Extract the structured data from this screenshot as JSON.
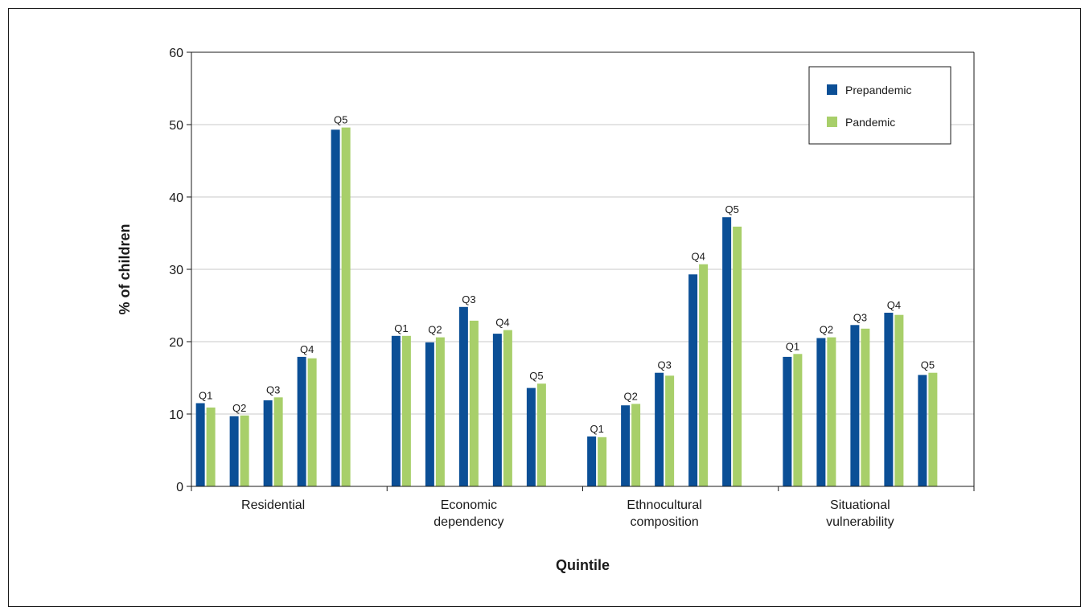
{
  "chart_data": {
    "type": "bar",
    "xlabel": "Quintile",
    "ylabel": "% of children",
    "ylim": [
      0,
      60
    ],
    "yticks": [
      0,
      10,
      20,
      30,
      40,
      50,
      60
    ],
    "grid": true,
    "legend_position": "top-right",
    "groups": [
      {
        "label_lines": [
          "Residential"
        ],
        "quintiles": [
          "Q1",
          "Q2",
          "Q3",
          "Q4",
          "Q5"
        ],
        "prepandemic": [
          11.5,
          9.7,
          11.9,
          17.9,
          49.3
        ],
        "pandemic": [
          10.9,
          9.8,
          12.3,
          17.7,
          49.6
        ]
      },
      {
        "label_lines": [
          "Economic",
          "dependency"
        ],
        "quintiles": [
          "Q1",
          "Q2",
          "Q3",
          "Q4",
          "Q5"
        ],
        "prepandemic": [
          20.8,
          19.9,
          24.8,
          21.1,
          13.6
        ],
        "pandemic": [
          20.8,
          20.6,
          22.9,
          21.6,
          14.2
        ]
      },
      {
        "label_lines": [
          "Ethnocultural",
          "composition"
        ],
        "quintiles": [
          "Q1",
          "Q2",
          "Q3",
          "Q4",
          "Q5"
        ],
        "prepandemic": [
          6.9,
          11.2,
          15.7,
          29.3,
          37.2
        ],
        "pandemic": [
          6.8,
          11.4,
          15.3,
          30.7,
          35.9
        ]
      },
      {
        "label_lines": [
          "Situational",
          "vulnerability"
        ],
        "quintiles": [
          "Q1",
          "Q2",
          "Q3",
          "Q4",
          "Q5"
        ],
        "prepandemic": [
          17.9,
          20.5,
          22.3,
          24.0,
          15.4
        ],
        "pandemic": [
          18.3,
          20.6,
          21.8,
          23.7,
          15.7
        ]
      }
    ],
    "series": [
      {
        "key": "prepandemic",
        "name": "Prepandemic",
        "color": "#0b4f96"
      },
      {
        "key": "pandemic",
        "name": "Pandemic",
        "color": "#a8cf6a"
      }
    ]
  }
}
